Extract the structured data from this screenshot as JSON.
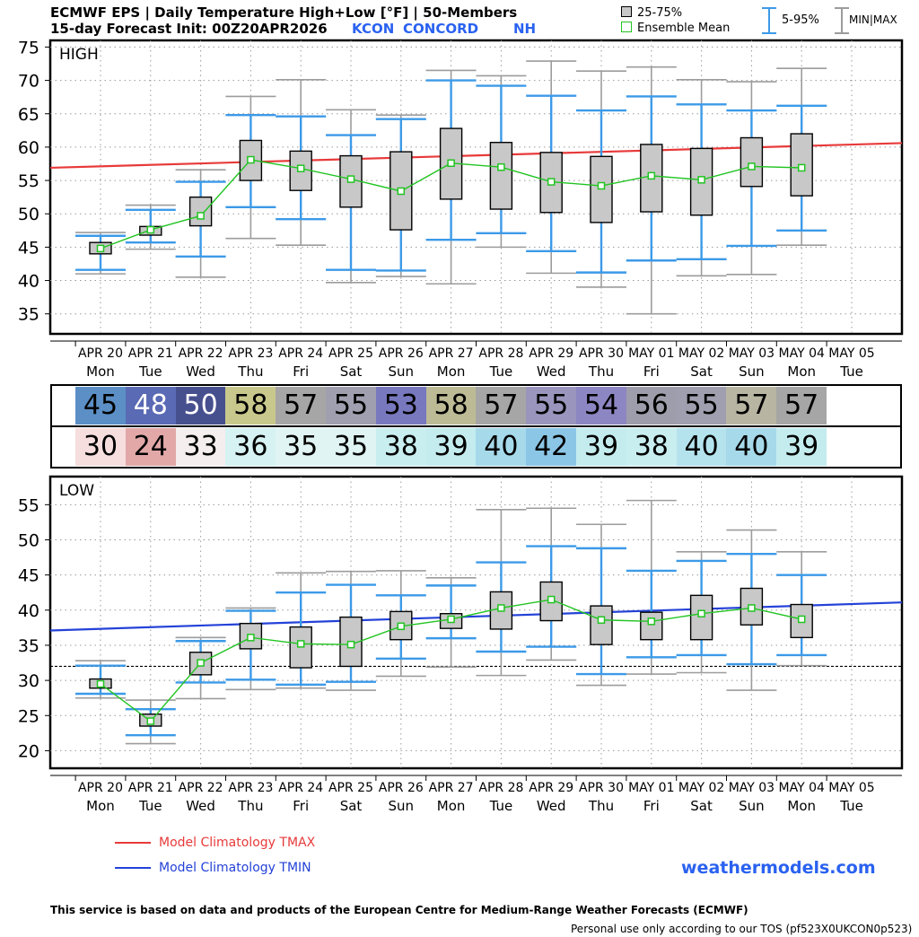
{
  "header": {
    "title_line1": "ECMWF EPS | Daily Temperature High+Low [°F] | 50-Members",
    "title_line2": "15-day Forecast Init: 00Z20APR2026",
    "station_code": "KCON",
    "station_name": "CONCORD",
    "region": "NH"
  },
  "legend": {
    "box_label": "25-75%",
    "mean_label": "Ensemble Mean",
    "whisker_label": "5-95%",
    "minmax_label": "MIN|MAX"
  },
  "colors": {
    "tmax_clim": "#e83a3a",
    "tmin_clim": "#2442d8",
    "whisker_5_95": "#3c9ae8",
    "minmax": "#9c9c9c",
    "mean": "#22c422",
    "box_fill": "#c8c8c8",
    "brand": "#2a62f0"
  },
  "axis_dates": [
    "APR 20",
    "APR 21",
    "APR 22",
    "APR 23",
    "APR 24",
    "APR 25",
    "APR 26",
    "APR 27",
    "APR 28",
    "APR 29",
    "APR 30",
    "MAY 01",
    "MAY 02",
    "MAY 03",
    "MAY 04",
    "MAY 05"
  ],
  "axis_days": [
    "Mon",
    "Tue",
    "Wed",
    "Thu",
    "Fri",
    "Sat",
    "Sun",
    "Mon",
    "Tue",
    "Wed",
    "Thu",
    "Fri",
    "Sat",
    "Sun",
    "Mon",
    "Tue"
  ],
  "table": {
    "high": [
      {
        "value": "45",
        "bg": "#5b8fc6",
        "fg": "#000000"
      },
      {
        "value": "48",
        "bg": "#5a6ab4",
        "fg": "#ffffff"
      },
      {
        "value": "50",
        "bg": "#47508e",
        "fg": "#ffffff"
      },
      {
        "value": "58",
        "bg": "#c9c88c",
        "fg": "#000000"
      },
      {
        "value": "57",
        "bg": "#a6a6a6",
        "fg": "#000000"
      },
      {
        "value": "55",
        "bg": "#a09faf",
        "fg": "#000000"
      },
      {
        "value": "53",
        "bg": "#7878bf",
        "fg": "#000000"
      },
      {
        "value": "58",
        "bg": "#bdbb96",
        "fg": "#000000"
      },
      {
        "value": "57",
        "bg": "#a6a6a6",
        "fg": "#000000"
      },
      {
        "value": "55",
        "bg": "#9a95bd",
        "fg": "#000000"
      },
      {
        "value": "54",
        "bg": "#8c86c2",
        "fg": "#000000"
      },
      {
        "value": "56",
        "bg": "#9e9dab",
        "fg": "#000000"
      },
      {
        "value": "55",
        "bg": "#a09faf",
        "fg": "#000000"
      },
      {
        "value": "57",
        "bg": "#b8b5a2",
        "fg": "#000000"
      },
      {
        "value": "57",
        "bg": "#a6a6a6",
        "fg": "#000000"
      }
    ],
    "low": [
      {
        "value": "30",
        "bg": "#f6dede",
        "fg": "#000000"
      },
      {
        "value": "24",
        "bg": "#e2a8a8",
        "fg": "#000000"
      },
      {
        "value": "33",
        "bg": "#f4eeee",
        "fg": "#000000"
      },
      {
        "value": "36",
        "bg": "#d6f2f2",
        "fg": "#000000"
      },
      {
        "value": "35",
        "bg": "#e0f4f4",
        "fg": "#000000"
      },
      {
        "value": "35",
        "bg": "#e0f4f4",
        "fg": "#000000"
      },
      {
        "value": "38",
        "bg": "#c9eef0",
        "fg": "#000000"
      },
      {
        "value": "39",
        "bg": "#c4ecef",
        "fg": "#000000"
      },
      {
        "value": "40",
        "bg": "#a6d9ea",
        "fg": "#000000"
      },
      {
        "value": "42",
        "bg": "#8cc6e6",
        "fg": "#000000"
      },
      {
        "value": "39",
        "bg": "#c4ecef",
        "fg": "#000000"
      },
      {
        "value": "38",
        "bg": "#c9eef0",
        "fg": "#000000"
      },
      {
        "value": "40",
        "bg": "#b4e3ee",
        "fg": "#000000"
      },
      {
        "value": "40",
        "bg": "#a6d9ea",
        "fg": "#000000"
      },
      {
        "value": "39",
        "bg": "#c4ecef",
        "fg": "#000000"
      }
    ]
  },
  "chart_data": [
    {
      "type": "boxplot",
      "title": "HIGH",
      "ylabel": "°F",
      "ylim": [
        32,
        76
      ],
      "yticks": [
        35,
        40,
        45,
        50,
        55,
        60,
        65,
        70,
        75
      ],
      "grid": true,
      "categories": [
        "APR 20",
        "APR 21",
        "APR 22",
        "APR 23",
        "APR 24",
        "APR 25",
        "APR 26",
        "APR 27",
        "APR 28",
        "APR 29",
        "APR 30",
        "MAY 01",
        "MAY 02",
        "MAY 03",
        "MAY 04"
      ],
      "min": [
        41.0,
        44.7,
        40.5,
        46.3,
        45.3,
        39.7,
        40.6,
        39.5,
        45.0,
        41.1,
        39.0,
        35.0,
        40.7,
        40.9,
        45.3
      ],
      "p5": [
        41.6,
        45.7,
        43.6,
        51.0,
        49.2,
        41.6,
        41.5,
        46.1,
        47.1,
        44.4,
        41.2,
        43.0,
        43.2,
        45.2,
        47.5
      ],
      "q1": [
        44.0,
        46.8,
        48.2,
        55.0,
        53.5,
        51.0,
        47.6,
        52.2,
        50.7,
        50.2,
        48.7,
        50.3,
        49.8,
        54.1,
        52.7
      ],
      "mean": [
        44.8,
        47.6,
        49.7,
        58.1,
        56.8,
        55.2,
        53.4,
        57.6,
        57.0,
        54.8,
        54.2,
        55.7,
        55.1,
        57.1,
        56.9
      ],
      "q3": [
        45.7,
        48.1,
        52.5,
        61.0,
        59.4,
        58.7,
        59.3,
        62.8,
        60.7,
        59.2,
        58.6,
        60.4,
        59.8,
        61.4,
        62.0
      ],
      "p95": [
        46.7,
        50.6,
        54.8,
        64.8,
        64.6,
        61.8,
        64.2,
        70.0,
        69.2,
        67.7,
        65.5,
        67.6,
        66.4,
        65.5,
        66.2
      ],
      "max": [
        47.2,
        51.3,
        56.6,
        67.6,
        70.1,
        65.6,
        64.8,
        71.5,
        70.7,
        72.9,
        71.4,
        72.0,
        70.1,
        69.8,
        71.8
      ],
      "climatology": {
        "label": "Model Climatology TMAX",
        "start": 56.9,
        "end": 60.6
      }
    },
    {
      "type": "boxplot",
      "title": "LOW",
      "ylabel": "°F",
      "ylim": [
        17.5,
        59
      ],
      "yticks": [
        20,
        25,
        30,
        35,
        40,
        45,
        50,
        55
      ],
      "grid": true,
      "reference_line": 32,
      "categories": [
        "APR 20",
        "APR 21",
        "APR 22",
        "APR 23",
        "APR 24",
        "APR 25",
        "APR 26",
        "APR 27",
        "APR 28",
        "APR 29",
        "APR 30",
        "MAY 01",
        "MAY 02",
        "MAY 03",
        "MAY 04"
      ],
      "min": [
        27.5,
        21.0,
        27.4,
        28.7,
        28.9,
        28.6,
        30.6,
        31.9,
        30.7,
        32.9,
        29.3,
        30.9,
        31.1,
        28.6,
        32.1
      ],
      "p5": [
        28.1,
        22.2,
        29.7,
        30.1,
        29.4,
        29.8,
        33.1,
        36.0,
        34.1,
        34.8,
        30.9,
        33.3,
        33.6,
        32.3,
        33.6
      ],
      "q1": [
        28.9,
        23.5,
        30.8,
        34.5,
        31.8,
        32.0,
        35.8,
        37.4,
        37.3,
        38.5,
        35.1,
        35.8,
        35.8,
        37.9,
        36.1
      ],
      "mean": [
        29.5,
        24.2,
        32.5,
        36.1,
        35.2,
        35.1,
        37.7,
        38.7,
        40.3,
        41.5,
        38.6,
        38.4,
        39.5,
        40.3,
        38.7
      ],
      "q3": [
        30.2,
        25.2,
        34.0,
        38.1,
        37.6,
        39.0,
        39.8,
        39.5,
        42.6,
        44.0,
        40.6,
        39.7,
        42.1,
        43.1,
        40.8
      ],
      "p95": [
        32.1,
        25.9,
        35.6,
        39.9,
        42.5,
        43.6,
        42.1,
        43.5,
        46.8,
        49.1,
        48.8,
        45.6,
        47.0,
        48.0,
        45.0
      ],
      "max": [
        32.8,
        27.2,
        36.1,
        40.3,
        45.3,
        45.5,
        45.6,
        44.6,
        54.3,
        54.5,
        52.2,
        55.6,
        48.3,
        51.4,
        48.3
      ],
      "climatology": {
        "label": "Model Climatology TMIN",
        "start": 37.1,
        "end": 41.1
      }
    }
  ],
  "climatology_legend": {
    "tmax_label": "Model Climatology TMAX",
    "tmin_label": "Model Climatology TMIN"
  },
  "footer": {
    "brand": "weathermodels.com",
    "disclaimer": "This service is based on data and products of the European Centre for Medium-Range Weather Forecasts (ECMWF)",
    "tos": "Personal use only according to our TOS (pf523X0UKCON0p523)"
  }
}
